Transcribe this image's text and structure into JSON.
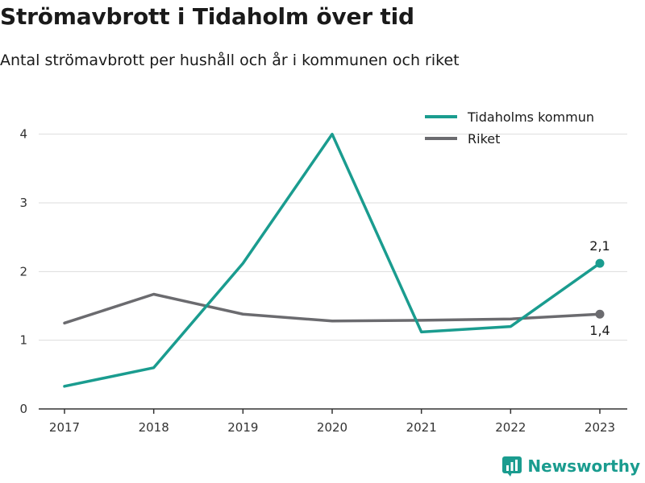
{
  "title": "Strömavbrott i Tidaholm över tid",
  "subtitle": "Antal strömavbrott per hushåll och år i kommunen och riket",
  "brand": "Newsworthy",
  "colors": {
    "teal": "#1a9c8f",
    "gray": "#6b6b6f",
    "grid": "#dddddd",
    "axis": "#333333"
  },
  "chart_data": {
    "type": "line",
    "title": "Strömavbrott i Tidaholm över tid",
    "subtitle": "Antal strömavbrott per hushåll och år i kommunen och riket",
    "xlabel": "",
    "ylabel": "",
    "x": [
      "2017",
      "2018",
      "2019",
      "2020",
      "2021",
      "2022",
      "2023"
    ],
    "ylim": [
      0,
      4.5
    ],
    "yticks": [
      0,
      1,
      2,
      3,
      4
    ],
    "grid": "horizontal",
    "legend": "top-right",
    "series": [
      {
        "name": "Tidaholms kommun",
        "color": "#1a9c8f",
        "values": [
          0.33,
          0.6,
          2.12,
          4.0,
          1.12,
          1.2,
          2.12
        ],
        "end_label": "2,1"
      },
      {
        "name": "Riket",
        "color": "#6b6b6f",
        "values": [
          1.25,
          1.67,
          1.38,
          1.28,
          1.29,
          1.31,
          1.38
        ],
        "end_label": "1,4"
      }
    ]
  }
}
